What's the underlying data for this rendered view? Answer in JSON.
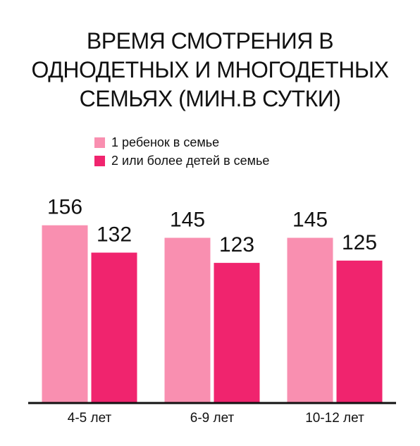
{
  "chart_data": {
    "type": "bar",
    "title": "ВРЕМЯ СМОТРЕНИЯ В\nОДНОДЕТНЫХ И МНОГОДЕТНЫХ\nСЕМЬЯХ (МИН.В СУТКИ)",
    "categories": [
      "4-5 лет",
      "6-9 лет",
      "10-12 лет"
    ],
    "series": [
      {
        "name": "1 ребенок в семье",
        "color": "#f98fb0",
        "values": [
          156,
          145,
          145
        ]
      },
      {
        "name": "2 или более детей в семье",
        "color": "#f0246e",
        "values": [
          132,
          123,
          125
        ]
      }
    ],
    "ylim": [
      0,
      175
    ]
  }
}
